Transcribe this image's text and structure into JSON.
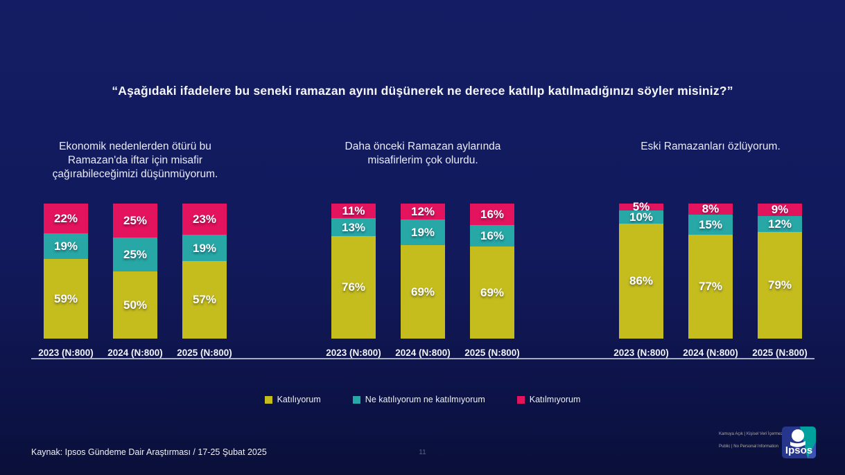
{
  "title": "“Aşağıdaki ifadelere bu seneki ramazan ayını düşünerek ne derece katılıp katılmadığınızı söyler misiniz?”",
  "chart_data": {
    "type": "bar",
    "stacked": true,
    "unit": "%",
    "ylim": [
      0,
      100
    ],
    "legend_position": "bottom",
    "grid": false,
    "legend": [
      {
        "label": "Katılıyorum",
        "color": "#c5bd1e"
      },
      {
        "label": "Ne katılıyorum ne katılmıyorum",
        "color": "#27a7a5"
      },
      {
        "label": "Katılmıyorum",
        "color": "#e3135e"
      }
    ],
    "groups": [
      {
        "subtitle": "Ekonomik nedenlerden ötürü bu Ramazan'da iftar için misafir çağırabileceğimizi düşünmüyorum.",
        "categories": [
          "2023 (N:800)",
          "2024 (N:800)",
          "2025 (N:800)"
        ],
        "series": [
          {
            "name": "Katılıyorum",
            "values": [
              59,
              50,
              57
            ]
          },
          {
            "name": "Ne katılıyorum ne katılmıyorum",
            "values": [
              19,
              25,
              19
            ]
          },
          {
            "name": "Katılmıyorum",
            "values": [
              22,
              25,
              23
            ]
          }
        ]
      },
      {
        "subtitle": "Daha önceki Ramazan aylarında misafirlerim çok olurdu.",
        "categories": [
          "2023 (N:800)",
          "2024 (N:800)",
          "2025 (N:800)"
        ],
        "series": [
          {
            "name": "Katılıyorum",
            "values": [
              76,
              69,
              69
            ]
          },
          {
            "name": "Ne katılıyorum ne katılmıyorum",
            "values": [
              13,
              19,
              16
            ]
          },
          {
            "name": "Katılmıyorum",
            "values": [
              11,
              12,
              16
            ]
          }
        ]
      },
      {
        "subtitle": "Eski Ramazanları özlüyorum.",
        "categories": [
          "2023 (N:800)",
          "2024 (N:800)",
          "2025 (N:800)"
        ],
        "series": [
          {
            "name": "Katılıyorum",
            "values": [
              86,
              77,
              79
            ]
          },
          {
            "name": "Ne katılıyorum ne katılmıyorum",
            "values": [
              10,
              15,
              12
            ]
          },
          {
            "name": "Katılmıyorum",
            "values": [
              5,
              8,
              9
            ]
          }
        ]
      }
    ]
  },
  "footer": {
    "source": "Kaynak: Ipsos Gündeme Dair Araştırması / 17-25 Şubat 2025",
    "page_number": "11",
    "privacy_line1": "Kamuya Açık | Kişisel Veri İçermez",
    "privacy_line2": "Public | No Personal Information",
    "logo_text": "Ipsos"
  },
  "colors": {
    "background": "#121a5d",
    "baseline": "#c4c8d8",
    "logo_navy": "#26368c",
    "logo_teal": "#00a19c"
  }
}
